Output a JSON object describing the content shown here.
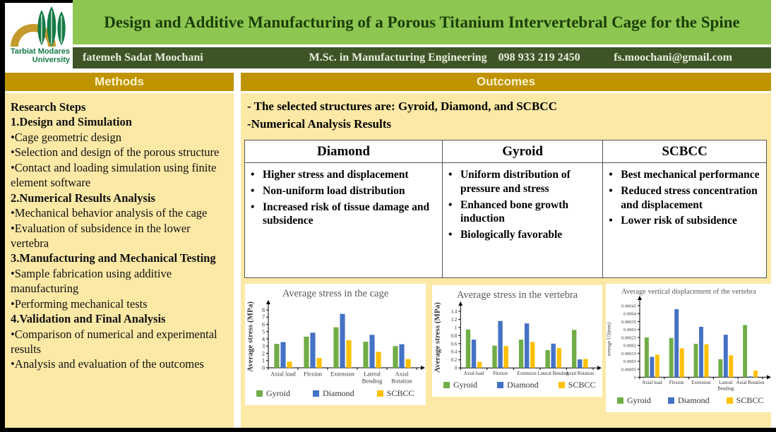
{
  "page": {
    "title": "Design and Additive Manufacturing of a Porous Titanium Intervertebral Cage for the Spine",
    "logo": {
      "line1": "Tarbiat Modares",
      "line2": "University"
    },
    "author": {
      "name": "fatemeh Sadat Moochani",
      "degree": "M.Sc. in Manufacturing Engineering",
      "phone": "098 933 219 2450",
      "email": "fs.moochani@gmail.com"
    }
  },
  "methods": {
    "header": "Methods",
    "lines": [
      {
        "b": 1,
        "t": "Research Steps"
      },
      {
        "b": 1,
        "t": "1.Design and Simulation"
      },
      {
        "b": 0,
        "t": "•Cage geometric design"
      },
      {
        "b": 0,
        "t": "•Selection and design of the porous structure"
      },
      {
        "b": 0,
        "t": "•Contact and loading simulation using finite element software"
      },
      {
        "b": 1,
        "t": "2.Numerical Results Analysis"
      },
      {
        "b": 0,
        "t": "•Mechanical behavior analysis of the cage"
      },
      {
        "b": 0,
        "t": "•Evaluation of subsidence in the lower vertebra"
      },
      {
        "b": 1,
        "t": "3.Manufacturing and Mechanical Testing"
      },
      {
        "b": 0,
        "t": "•Sample fabrication using additive manufacturing"
      },
      {
        "b": 0,
        "t": "•Performing mechanical tests"
      },
      {
        "b": 1,
        "t": "4.Validation and Final Analysis"
      },
      {
        "b": 0,
        "t": "•Comparison of numerical and experimental results"
      },
      {
        "b": 0,
        "t": "•Analysis and evaluation of the outcomes"
      }
    ]
  },
  "outcomes": {
    "header": "Outcomes",
    "intro": [
      "- The selected structures are: Gyroid, Diamond, and SCBCC",
      "-Numerical Analysis Results"
    ],
    "table": {
      "columns": [
        {
          "title": "Diamond",
          "width_pct": 37.8,
          "bullets": [
            "Higher stress and displacement",
            "Non-uniform load distribution",
            "Increased risk of tissue damage and subsidence"
          ]
        },
        {
          "title": "Gyroid",
          "width_pct": 30.8,
          "bullets": [
            "Uniform distribution of pressure and stress",
            "Enhanced bone growth induction",
            "Biologically favorable"
          ]
        },
        {
          "title": "SCBCC",
          "width_pct": 31.4,
          "bullets": [
            "Best mechanical performance",
            "Reduced stress concentration and displacement",
            "Lower risk of subsidence"
          ]
        }
      ]
    }
  },
  "colors": {
    "header_green": "#8dc751",
    "title_green": "#1b3f08",
    "bar_dark_green": "#3d5427",
    "author_text": "#e9eedd",
    "gold": "#c09300",
    "header_text_cream": "#fdf3cd",
    "body_yellow": "#fce9a6",
    "chart_title_grey": "#595959",
    "series_gyroid": "#70ad47",
    "series_diamond": "#4472c4",
    "series_scbcc": "#ffc000",
    "logo_gold": "#c49a2c",
    "logo_green": "#157a46"
  },
  "chart_data": [
    {
      "type": "bar",
      "title": "Average stress in the cage",
      "ylabel": "Average stress (MPa)",
      "xlabel": "",
      "categories": [
        "Axial load",
        "Flexion",
        "Extension",
        "Lateral\nBending",
        "Axial\nRotation"
      ],
      "series": [
        {
          "name": "Gyroid",
          "color": "#70ad47",
          "values": [
            3.3,
            4.3,
            5.6,
            3.6,
            3.0
          ]
        },
        {
          "name": "Diamond",
          "color": "#4472c4",
          "values": [
            3.55,
            4.85,
            7.45,
            4.55,
            3.25
          ]
        },
        {
          "name": "SCBCC",
          "color": "#ffc000",
          "values": [
            0.85,
            1.35,
            3.8,
            2.2,
            1.2
          ]
        }
      ],
      "ylim": [
        0,
        8
      ],
      "ytick": 1,
      "grid": false,
      "legend_position": "bottom",
      "style": {
        "title_size": 14.5,
        "ylabel_size": 11,
        "ylabel_bold": true,
        "tick_size": 8,
        "cat_size": 8.5,
        "legend_size": 12,
        "legend_gap": 32
      }
    },
    {
      "type": "bar",
      "title": "Average stress in the vertebra",
      "ylabel": "Average stress (MPa)",
      "xlabel": "",
      "categories": [
        "Axial load",
        "Flexion",
        "Extension",
        "Lateral Bending",
        "Axial Rotation"
      ],
      "series": [
        {
          "name": "Gyroid",
          "color": "#70ad47",
          "values": [
            0.95,
            0.55,
            0.7,
            0.44,
            0.94
          ]
        },
        {
          "name": "Diamond",
          "color": "#4472c4",
          "values": [
            0.7,
            1.16,
            1.1,
            0.6,
            0.21
          ]
        },
        {
          "name": "SCBCC",
          "color": "#ffc000",
          "values": [
            0.15,
            0.54,
            0.64,
            0.49,
            0.22
          ]
        }
      ],
      "ylim": [
        0,
        1.4
      ],
      "ytick": 0.2,
      "grid": false,
      "legend_position": "bottom",
      "style": {
        "title_size": 14.5,
        "ylabel_size": 11,
        "ylabel_bold": true,
        "tick_size": 7,
        "cat_size": 6.8,
        "legend_size": 12,
        "legend_gap": 28
      }
    },
    {
      "type": "bar",
      "title": "Average vertical displacement of the vertebra",
      "ylabel": "average U3(mm)",
      "xlabel": "",
      "categories": [
        "Axial load",
        "Flexion",
        "Extension",
        "Lateral\nBending",
        "Axial Rotation"
      ],
      "series": [
        {
          "name": "Gyroid",
          "color": "#70ad47",
          "values": [
            0.00025,
            0.000247,
            0.00021,
            0.000113,
            0.000328
          ]
        },
        {
          "name": "Diamond",
          "color": "#4472c4",
          "values": [
            0.000128,
            0.000428,
            0.000317,
            0.000267,
            5e-06
          ]
        },
        {
          "name": "SCBCC",
          "color": "#ffc000",
          "values": [
            0.000142,
            0.000182,
            0.000207,
            0.000138,
            4.2e-05
          ]
        }
      ],
      "ylim": [
        0,
        0.00045
      ],
      "ytick": 5e-05,
      "grid": false,
      "legend_position": "bottom",
      "style": {
        "title_size": 10.5,
        "ylabel_size": 7,
        "ylabel_bold": false,
        "tick_size": 6.5,
        "cat_size": 6.8,
        "legend_size": 12,
        "legend_gap": 24
      }
    }
  ]
}
